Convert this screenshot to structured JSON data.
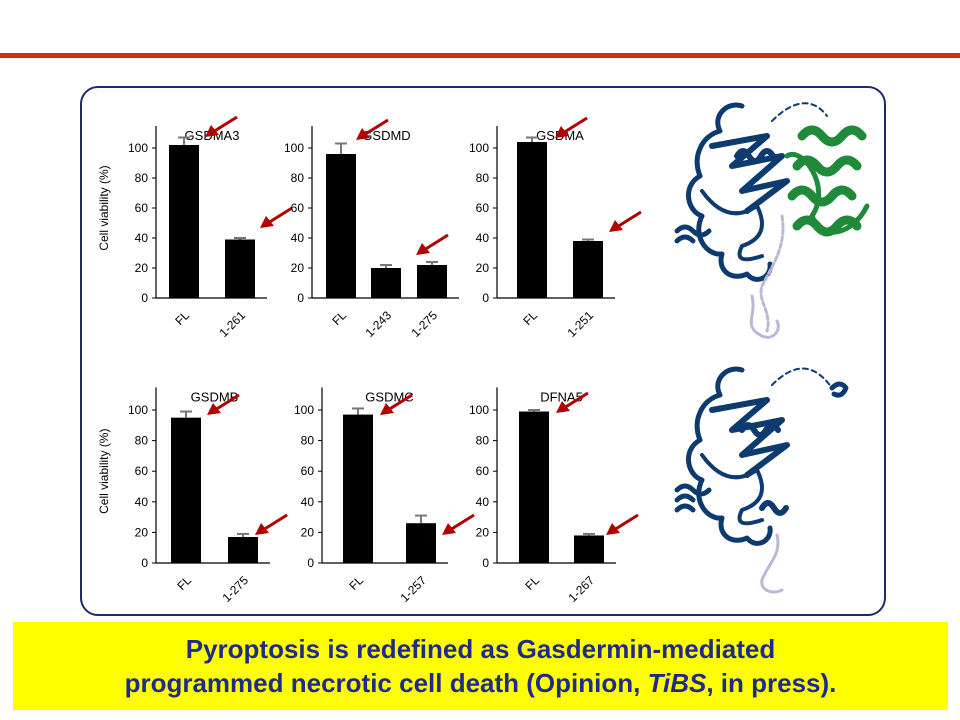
{
  "colors": {
    "rule": "#cc3300",
    "panel_border": "#1f2a6b",
    "bar": "#000000",
    "error_bar": "#777777",
    "arrow": "#b00000",
    "banner_bg": "#ffff00",
    "banner_text": "#1f2a8a",
    "protein_blue": "#0d3b70",
    "protein_green": "#1e8a3a"
  },
  "chart_data": [
    {
      "type": "bar",
      "title": "GSDMA3",
      "ylabel": "Cell viability (%)",
      "yticks": [
        "0",
        "20",
        "40",
        "60",
        "80",
        "100"
      ],
      "ylim": [
        0,
        120
      ],
      "categories": [
        "FL",
        "1-261"
      ],
      "values": [
        102,
        39
      ],
      "errors": [
        5,
        1
      ],
      "arrows": true
    },
    {
      "type": "bar",
      "title": "GSDMD",
      "ylabel": "",
      "yticks": [
        "0",
        "20",
        "40",
        "60",
        "80",
        "100"
      ],
      "ylim": [
        0,
        120
      ],
      "categories": [
        "FL",
        "1-243",
        "1-275"
      ],
      "values": [
        96,
        20,
        22
      ],
      "errors": [
        7,
        2,
        2
      ],
      "arrows": true
    },
    {
      "type": "bar",
      "title": "GSDMA",
      "ylabel": "",
      "yticks": [
        "0",
        "20",
        "40",
        "60",
        "80",
        "100"
      ],
      "ylim": [
        0,
        120
      ],
      "categories": [
        "FL",
        "1-251"
      ],
      "values": [
        104,
        38
      ],
      "errors": [
        3,
        1
      ],
      "arrows": true
    },
    {
      "type": "bar",
      "title": "GSDMB",
      "ylabel": "Cell viability (%)",
      "yticks": [
        "0",
        "20",
        "40",
        "60",
        "80",
        "100"
      ],
      "ylim": [
        0,
        120
      ],
      "categories": [
        "FL",
        "1-275"
      ],
      "values": [
        95,
        17
      ],
      "errors": [
        4,
        2
      ],
      "arrows": true
    },
    {
      "type": "bar",
      "title": "GSDMC",
      "ylabel": "",
      "yticks": [
        "0",
        "20",
        "40",
        "60",
        "80",
        "100"
      ],
      "ylim": [
        0,
        120
      ],
      "categories": [
        "FL",
        "1-257"
      ],
      "values": [
        97,
        26
      ],
      "errors": [
        4,
        5
      ],
      "arrows": true
    },
    {
      "type": "bar",
      "title": "DFNA5",
      "ylabel": "",
      "yticks": [
        "0",
        "20",
        "40",
        "60",
        "80",
        "100"
      ],
      "ylim": [
        0,
        120
      ],
      "categories": [
        "FL",
        "1-267"
      ],
      "values": [
        99,
        18
      ],
      "errors": [
        1,
        1
      ],
      "arrows": true
    }
  ],
  "banner": {
    "line1": "Pyroptosis is redefined as Gasdermin-mediated",
    "line2_pre": "programmed necrotic cell death (Opinion, ",
    "line2_italic": "TiBS",
    "line2_post": ", in press)."
  }
}
